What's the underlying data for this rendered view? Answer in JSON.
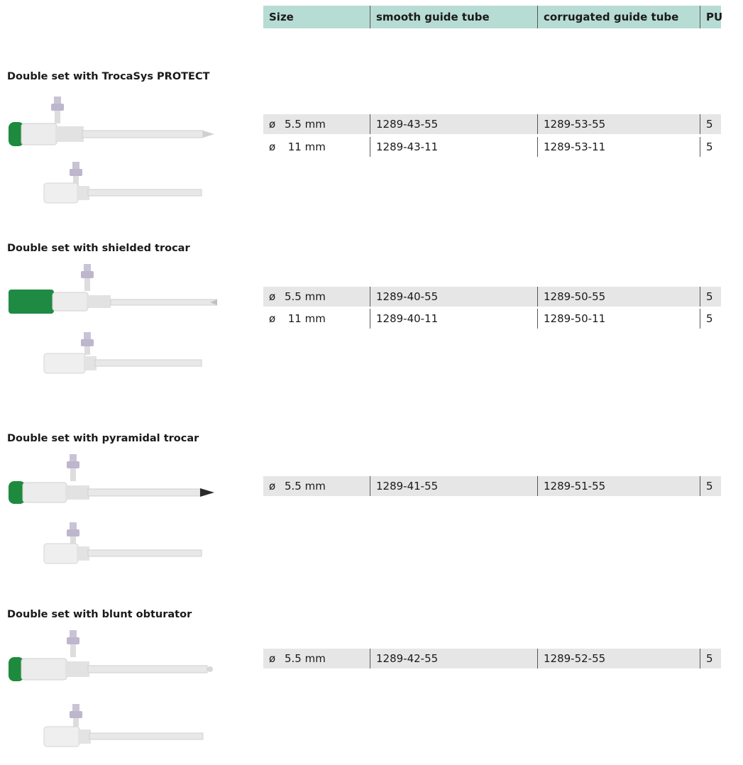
{
  "table_header": {
    "size": "Size",
    "smooth": "smooth guide tube",
    "corrugated": "corrugated guide tube",
    "pu": "PU"
  },
  "sections": [
    {
      "title": "Double set with TrocaSys PROTECT",
      "cap_color": "#1e8a3e",
      "rows": [
        {
          "sym": "ø",
          "size": "5.5 mm",
          "smooth": "1289-43-55",
          "corrugated": "1289-53-55",
          "pu": "5"
        },
        {
          "sym": "ø",
          "size": " 11 mm",
          "smooth": "1289-43-11",
          "corrugated": "1289-53-11",
          "pu": "5"
        }
      ]
    },
    {
      "title": "Double set with shielded trocar",
      "cap_color": "#1f8a44",
      "rows": [
        {
          "sym": "ø",
          "size": "5.5 mm",
          "smooth": "1289-40-55",
          "corrugated": "1289-50-55",
          "pu": "5"
        },
        {
          "sym": "ø",
          "size": " 11 mm",
          "smooth": "1289-40-11",
          "corrugated": "1289-50-11",
          "pu": "5"
        }
      ]
    },
    {
      "title": "Double set with pyramidal trocar",
      "cap_color": "#1e8a3e",
      "rows": [
        {
          "sym": "ø",
          "size": "5.5 mm",
          "smooth": "1289-41-55",
          "corrugated": "1289-51-55",
          "pu": "5"
        }
      ]
    },
    {
      "title": "Double set with blunt obturator",
      "cap_color": "#1e8a3e",
      "rows": [
        {
          "sym": "ø",
          "size": "5.5 mm",
          "smooth": "1289-42-55",
          "corrugated": "1289-52-55",
          "pu": "5"
        }
      ]
    }
  ],
  "colors": {
    "header_bg": "#b7dcd4",
    "row_shade": "#e6e6e6"
  }
}
